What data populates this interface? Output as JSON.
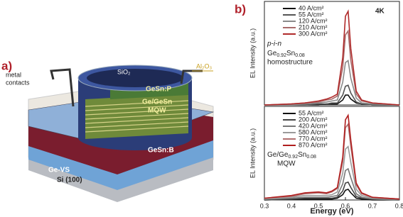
{
  "diagram": {
    "panel": "a)",
    "contacts": [
      "metal",
      "contacts"
    ],
    "oxide": "SiO₂",
    "passivation": "Al₂O₃",
    "top_layer": "GeSn:P",
    "mqw": [
      "Ge/GeSn",
      "MQW"
    ],
    "bottom_layer": "GeSn:B",
    "buffer": "Ge-VS",
    "substrate": "Si (100)"
  },
  "panel_b": "b)",
  "chart_data": [
    {
      "type": "line",
      "ylabel": "EL Intensity (a.u.)",
      "annotations": {
        "temperature": "4K",
        "junction": "p-i-n",
        "formula": [
          "Ge",
          "0.92",
          "Sn",
          "0.08"
        ],
        "structure": "homostructure"
      },
      "x": [
        0.3,
        0.4,
        0.45,
        0.5,
        0.53,
        0.55,
        0.57,
        0.59,
        0.6,
        0.61,
        0.62,
        0.64,
        0.66,
        0.7,
        0.8
      ],
      "xlim": [
        0.3,
        0.8
      ],
      "ylim": [
        0,
        1.05
      ],
      "series": [
        {
          "name": "40 A/cm²",
          "color": "#111111",
          "values": [
            0,
            0,
            0,
            0,
            0.01,
            0.01,
            0.01,
            0.05,
            0.1,
            0.1,
            0.06,
            0.02,
            0.01,
            0,
            0
          ]
        },
        {
          "name": "55 A/cm²",
          "color": "#555555",
          "values": [
            0,
            0,
            0,
            0.01,
            0.01,
            0.02,
            0.02,
            0.1,
            0.19,
            0.2,
            0.12,
            0.03,
            0.01,
            0,
            0
          ]
        },
        {
          "name": "120 A/cm²",
          "color": "#8a8a8a",
          "values": [
            0,
            0,
            0.01,
            0.02,
            0.03,
            0.04,
            0.05,
            0.23,
            0.43,
            0.45,
            0.27,
            0.07,
            0.02,
            0.01,
            0
          ]
        },
        {
          "name": "210 A/cm²",
          "color": "#a86a6a",
          "values": [
            0,
            0.01,
            0.02,
            0.03,
            0.05,
            0.06,
            0.09,
            0.38,
            0.71,
            0.75,
            0.45,
            0.11,
            0.04,
            0.02,
            0
          ]
        },
        {
          "name": "300 A/cm²",
          "color": "#b02a2a",
          "values": [
            0,
            0.01,
            0.02,
            0.04,
            0.06,
            0.08,
            0.11,
            0.48,
            0.9,
            0.95,
            0.57,
            0.14,
            0.05,
            0.02,
            0
          ]
        }
      ]
    },
    {
      "type": "line",
      "ylabel": "EL Intensity (a.u.)",
      "xlabel": "Energy (eV)",
      "annotations": {
        "formula": [
          "Ge/Ge",
          "0.92",
          "Sn",
          "0.08"
        ],
        "structure": "MQW"
      },
      "x": [
        0.3,
        0.4,
        0.45,
        0.5,
        0.53,
        0.55,
        0.57,
        0.59,
        0.6,
        0.61,
        0.62,
        0.64,
        0.66,
        0.7,
        0.8
      ],
      "xlim": [
        0.3,
        0.8
      ],
      "xticks": [
        0.3,
        0.4,
        0.5,
        0.6,
        0.7,
        0.8
      ],
      "ylim": [
        0,
        1.05
      ],
      "series": [
        {
          "name": "55 A/cm²",
          "color": "#111111",
          "values": [
            0,
            0.01,
            0.01,
            0.01,
            0.01,
            0.01,
            0.02,
            0.06,
            0.11,
            0.12,
            0.08,
            0.02,
            0.01,
            0,
            0
          ]
        },
        {
          "name": "200 A/cm²",
          "color": "#444444",
          "values": [
            0,
            0.01,
            0.02,
            0.02,
            0.02,
            0.02,
            0.03,
            0.1,
            0.19,
            0.2,
            0.14,
            0.04,
            0.02,
            0.01,
            0
          ]
        },
        {
          "name": "420 A/cm²",
          "color": "#777777",
          "values": [
            0.01,
            0.02,
            0.03,
            0.03,
            0.03,
            0.04,
            0.05,
            0.18,
            0.33,
            0.35,
            0.25,
            0.07,
            0.03,
            0.01,
            0
          ]
        },
        {
          "name": "580 A/cm²",
          "color": "#9a9a9a",
          "values": [
            0.01,
            0.03,
            0.05,
            0.05,
            0.05,
            0.06,
            0.09,
            0.3,
            0.57,
            0.6,
            0.42,
            0.12,
            0.05,
            0.02,
            0.01
          ]
        },
        {
          "name": "770 A/cm²",
          "color": "#b07070",
          "values": [
            0.02,
            0.04,
            0.07,
            0.08,
            0.07,
            0.09,
            0.13,
            0.43,
            0.81,
            0.85,
            0.6,
            0.17,
            0.07,
            0.03,
            0.01
          ]
        },
        {
          "name": "870 A/cm²",
          "color": "#b01e1e",
          "values": [
            0.02,
            0.05,
            0.08,
            0.09,
            0.08,
            0.1,
            0.14,
            0.48,
            0.9,
            0.95,
            0.67,
            0.19,
            0.08,
            0.03,
            0.01
          ]
        }
      ]
    }
  ]
}
